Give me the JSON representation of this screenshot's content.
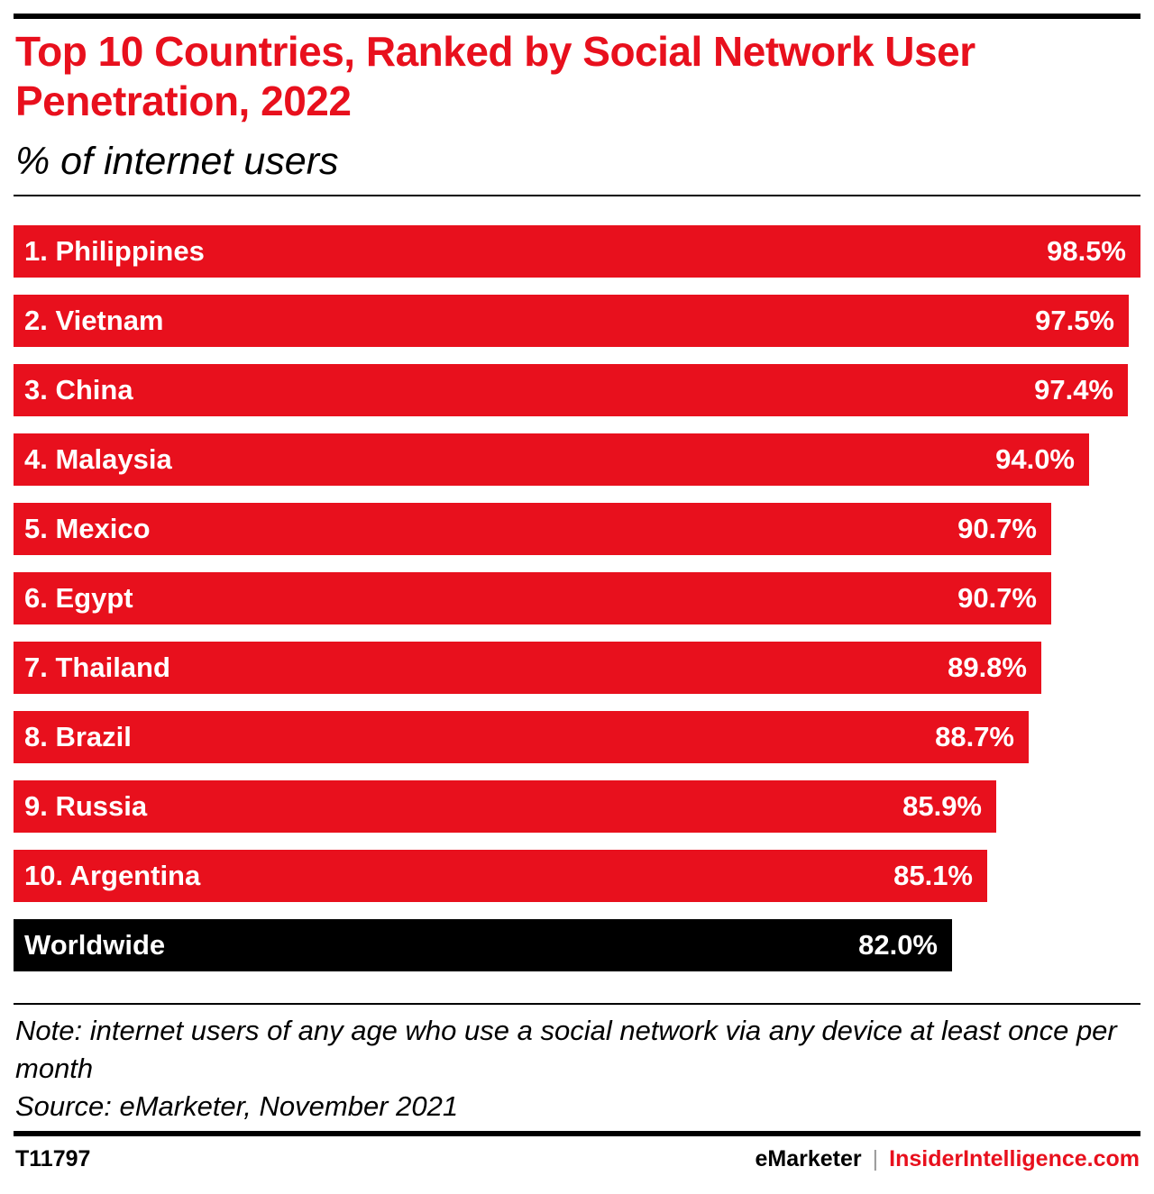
{
  "header": {
    "title": "Top 10 Countries, Ranked by Social Network User Penetration, 2022",
    "subtitle": "% of internet users"
  },
  "chart_data": {
    "type": "bar",
    "orientation": "horizontal",
    "title": "Top 10 Countries, Ranked by Social Network User Penetration, 2022",
    "subtitle": "% of internet users",
    "xlabel": "",
    "ylabel": "",
    "xlim": [
      0,
      98.5
    ],
    "grid": false,
    "legend": "none",
    "categories": [
      "1. Philippines",
      "2. Vietnam",
      "3. China",
      "4. Malaysia",
      "5. Mexico",
      "6. Egypt",
      "7. Thailand",
      "8. Brazil",
      "9. Russia",
      "10. Argentina",
      "Worldwide"
    ],
    "values": [
      98.5,
      97.5,
      97.4,
      94.0,
      90.7,
      90.7,
      89.8,
      88.7,
      85.9,
      85.1,
      82.0
    ],
    "value_labels": [
      "98.5%",
      "97.5%",
      "97.4%",
      "94.0%",
      "90.7%",
      "90.7%",
      "89.8%",
      "88.7%",
      "85.9%",
      "85.1%",
      "82.0%"
    ],
    "colors": [
      "#e8101d",
      "#e8101d",
      "#e8101d",
      "#e8101d",
      "#e8101d",
      "#e8101d",
      "#e8101d",
      "#e8101d",
      "#e8101d",
      "#e8101d",
      "#000000"
    ]
  },
  "footer": {
    "note": "Note: internet users of any age who use a social network via any device at least once per month",
    "source": "Source: eMarketer, November 2021",
    "chart_id": "T11797",
    "brand_primary": "eMarketer",
    "brand_separator": "|",
    "brand_secondary": "InsiderIntelligence.com"
  }
}
